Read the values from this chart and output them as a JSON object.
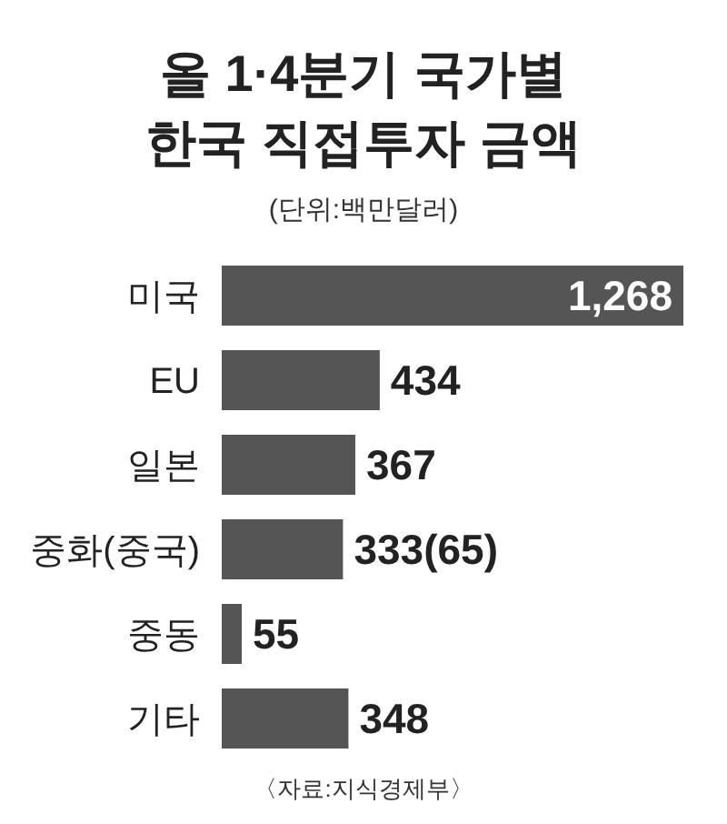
{
  "chart_data": {
    "type": "bar",
    "orientation": "horizontal",
    "title": "올 1·4분기 국가별\n한국 직접투자 금액",
    "subtitle": "(단위:백만달러)",
    "categories": [
      "미국",
      "EU",
      "일본",
      "중화(중국)",
      "중동",
      "기타"
    ],
    "values": [
      1268,
      434,
      367,
      333,
      55,
      348
    ],
    "value_labels": [
      "1,268",
      "434",
      "367",
      "333(65)",
      "55",
      "348"
    ],
    "color": "#555555",
    "annotations": [
      "〈자료:지식경제부〉"
    ]
  }
}
